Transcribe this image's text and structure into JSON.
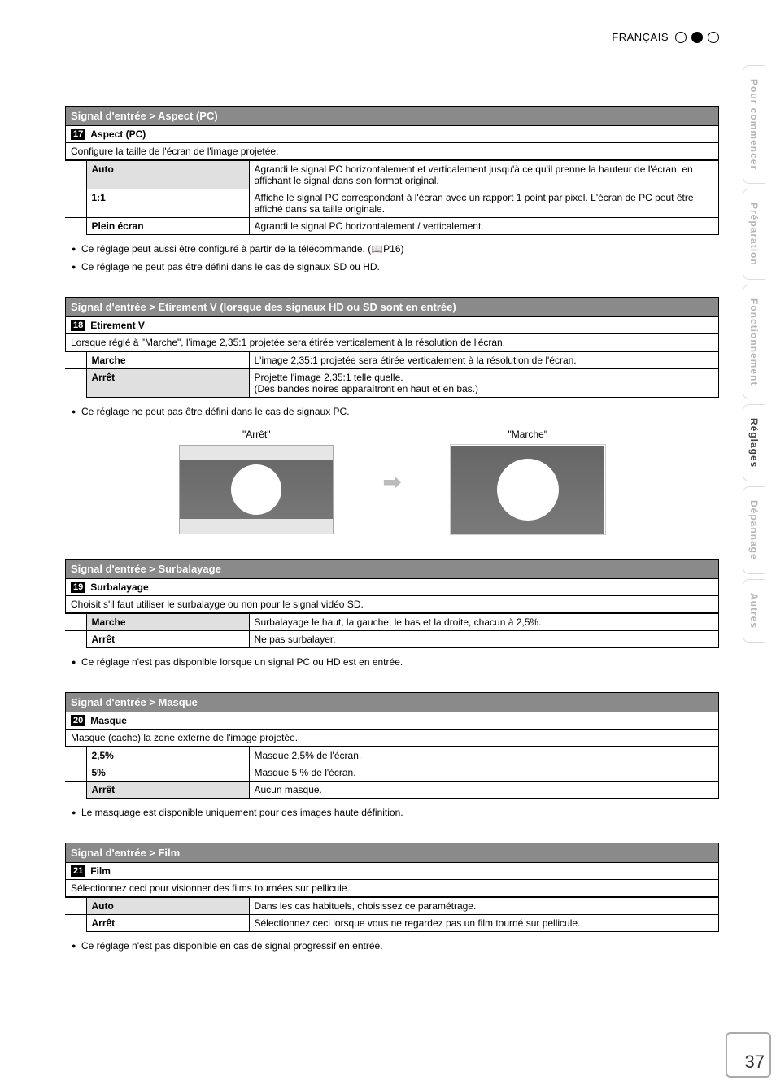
{
  "header": {
    "language": "FRANÇAIS"
  },
  "sidebar": {
    "tabs": [
      {
        "label": "Pour commencer",
        "active": false
      },
      {
        "label": "Préparation",
        "active": false
      },
      {
        "label": "Fonctionnement",
        "active": false
      },
      {
        "label": "Réglages",
        "active": true
      },
      {
        "label": "Dépannage",
        "active": false
      },
      {
        "label": "Autres",
        "active": false
      }
    ]
  },
  "page_number": "37",
  "sections": {
    "aspect_pc": {
      "header": "Signal d'entrée > Aspect (PC)",
      "num": "17",
      "title": "Aspect (PC)",
      "desc": "Configure la taille de l'écran de l'image projetée.",
      "rows": [
        {
          "label": "Auto",
          "highlight": true,
          "text": "Agrandi le signal PC horizontalement et verticalement jusqu'à ce qu'il prenne la hauteur de l'écran, en affichant le signal dans son format original."
        },
        {
          "label": "1:1",
          "highlight": false,
          "text": "Affiche le signal PC correspondant à l'écran avec un rapport 1 point par pixel. L'écran de PC peut être affiché dans sa taille originale."
        },
        {
          "label": "Plein écran",
          "highlight": false,
          "text": "Agrandi le signal PC horizontalement / verticalement."
        }
      ],
      "notes": [
        "Ce réglage peut aussi être configuré à partir de la télécommande. (📖P16)",
        "Ce réglage ne peut pas être défini dans le cas de signaux SD ou HD."
      ]
    },
    "etirement": {
      "header": "Signal d'entrée > Etirement V (lorsque des signaux HD ou SD sont en entrée)",
      "num": "18",
      "title": "Etirement V",
      "desc": "Lorsque réglé à \"Marche\", l'image 2,35:1 projetée sera étirée verticalement à la résolution de l'écran.",
      "rows": [
        {
          "label": "Marche",
          "highlight": false,
          "text": "L'image 2,35:1 projetée sera étirée verticalement à la résolution de l'écran."
        },
        {
          "label": "Arrêt",
          "highlight": true,
          "text": "Projette l'image 2,35:1 telle quelle.\n(Des bandes noires apparaîtront en haut et en bas.)"
        }
      ],
      "notes": [
        "Ce réglage ne peut pas être défini dans le cas de signaux PC."
      ],
      "diagram": {
        "left": "\"Arrêt\"",
        "right": "\"Marche\""
      }
    },
    "surbalayage": {
      "header": "Signal d'entrée > Surbalayage",
      "num": "19",
      "title": "Surbalayage",
      "desc": "Choisit s'il faut utiliser le surbalayge ou non pour le signal vidéo SD.",
      "rows": [
        {
          "label": "Marche",
          "highlight": true,
          "text": "Surbalayage le haut, la gauche, le bas et la droite, chacun à 2,5%."
        },
        {
          "label": "Arrêt",
          "highlight": false,
          "text": "Ne pas surbalayer."
        }
      ],
      "notes": [
        "Ce réglage n'est pas disponible lorsque un signal PC ou HD est en entrée."
      ]
    },
    "masque": {
      "header": "Signal d'entrée > Masque",
      "num": "20",
      "title": "Masque",
      "desc": "Masque (cache) la zone externe de l'image projetée.",
      "rows": [
        {
          "label": "2,5%",
          "highlight": false,
          "text": "Masque 2,5% de l'écran."
        },
        {
          "label": "5%",
          "highlight": false,
          "text": "Masque 5 % de l'écran."
        },
        {
          "label": "Arrêt",
          "highlight": true,
          "text": "Aucun masque."
        }
      ],
      "notes": [
        "Le masquage est disponible uniquement pour des images haute définition."
      ]
    },
    "film": {
      "header": "Signal d'entrée > Film",
      "num": "21",
      "title": "Film",
      "desc": "Sélectionnez ceci pour visionner des films tournées sur pellicule.",
      "rows": [
        {
          "label": "Auto",
          "highlight": true,
          "text": "Dans les cas habituels, choisissez ce paramétrage."
        },
        {
          "label": "Arrêt",
          "highlight": false,
          "text": "Sélectionnez ceci lorsque vous ne regardez pas un film tourné sur pellicule."
        }
      ],
      "notes": [
        "Ce réglage n'est pas disponible en cas de signal progressif en entrée."
      ]
    }
  }
}
